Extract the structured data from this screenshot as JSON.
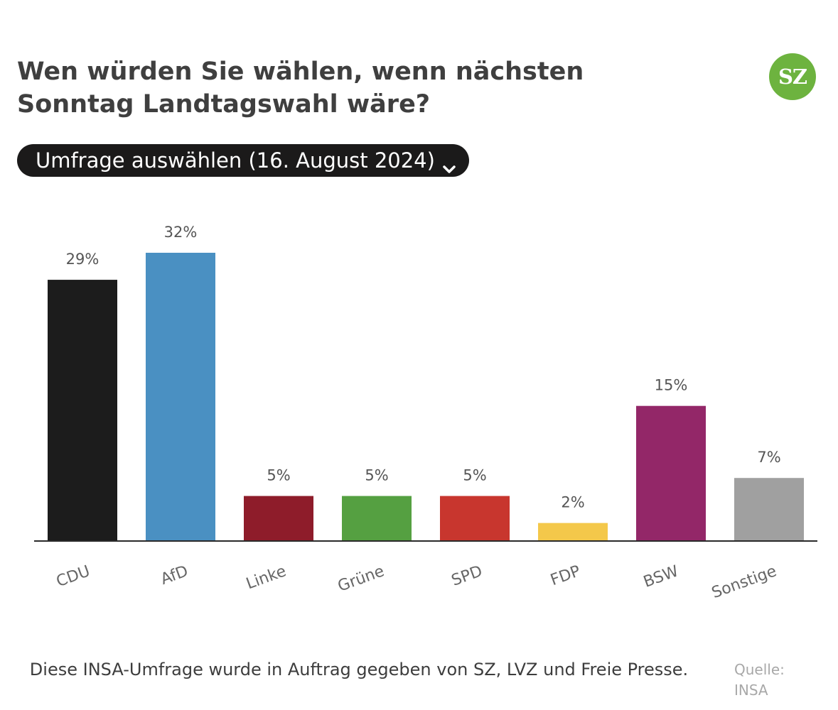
{
  "header": {
    "title": "Wen würden Sie wählen, wenn nächsten\nSonntag Landtagswahl wäre?",
    "logo_text": "SZ",
    "logo_color": "#6db33f"
  },
  "selector": {
    "label": "Umfrage auswählen (16. August 2024)",
    "icon": "chevron-down-icon"
  },
  "chart_data": {
    "type": "bar",
    "title": "Wen würden Sie wählen, wenn nächsten Sonntag Landtagswahl wäre?",
    "categories": [
      "CDU",
      "AfD",
      "Linke",
      "Grüne",
      "SPD",
      "FDP",
      "BSW",
      "Sonstige"
    ],
    "values": [
      29,
      32,
      5,
      5,
      5,
      2,
      15,
      7
    ],
    "value_labels": [
      "29%",
      "32%",
      "5%",
      "5%",
      "5%",
      "2%",
      "15%",
      "7%"
    ],
    "colors": [
      "#1c1c1c",
      "#4a90c2",
      "#8e1c2a",
      "#55a041",
      "#c8362e",
      "#f4c84a",
      "#932768",
      "#a0a0a0"
    ],
    "xlabel": "",
    "ylabel": "",
    "ylim": [
      0,
      32
    ],
    "grid": false,
    "legend": "none",
    "unit": "%"
  },
  "footer": {
    "note": "Diese INSA-Umfrage wurde in Auftrag gegeben von SZ, LVZ und Freie Presse.",
    "source": "Quelle:\nINSA"
  }
}
